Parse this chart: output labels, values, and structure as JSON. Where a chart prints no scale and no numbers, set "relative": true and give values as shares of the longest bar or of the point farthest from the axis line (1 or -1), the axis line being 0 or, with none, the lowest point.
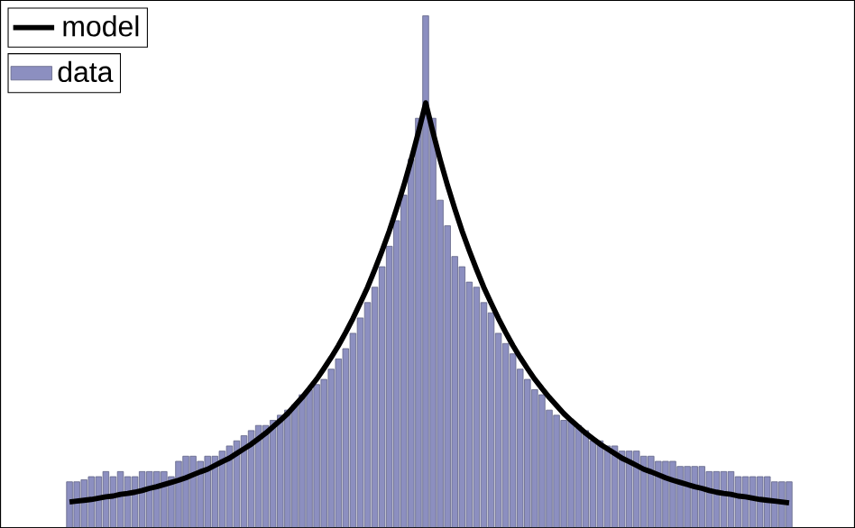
{
  "chart_data": [
    {
      "type": "line",
      "relative": true,
      "tick_labels": false,
      "legend": "top left",
      "categories": [
        null,
        null,
        null,
        null,
        null,
        null,
        null,
        null,
        null,
        null,
        null,
        null,
        null,
        null,
        null,
        null,
        null,
        null,
        null,
        null,
        null,
        null,
        null,
        null,
        null,
        null,
        null,
        null,
        null,
        null,
        null,
        null,
        null,
        null,
        null,
        null,
        null,
        null,
        null,
        null,
        null,
        null,
        null,
        null,
        null,
        null,
        null,
        null,
        null,
        null,
        null,
        null,
        null,
        null,
        null,
        null,
        null,
        null,
        null,
        null,
        null,
        null,
        null,
        null,
        null,
        null,
        null,
        null,
        null,
        null,
        null,
        null,
        null,
        null,
        null,
        null,
        null,
        null,
        null,
        null,
        null,
        null,
        null,
        null,
        null,
        null,
        null,
        null,
        null,
        null,
        null,
        null,
        null,
        null,
        null,
        null,
        null,
        null,
        null,
        null
      ],
      "series": [
        {
          "name": "model",
          "color": "#000000",
          "values": [
            0.061,
            0.063,
            0.065,
            0.067,
            0.07,
            0.073,
            0.075,
            0.079,
            0.081,
            0.084,
            0.088,
            0.093,
            0.097,
            0.102,
            0.107,
            0.112,
            0.118,
            0.125,
            0.132,
            0.138,
            0.147,
            0.156,
            0.164,
            0.175,
            0.186,
            0.197,
            0.21,
            0.223,
            0.238,
            0.253,
            0.269,
            0.288,
            0.307,
            0.328,
            0.35,
            0.375,
            0.401,
            0.429,
            0.46,
            0.493,
            0.529,
            0.566,
            0.608,
            0.652,
            0.699,
            0.751,
            0.806,
            0.866,
            0.931,
            1.0,
            0.931,
            0.866,
            0.806,
            0.751,
            0.699,
            0.652,
            0.608,
            0.566,
            0.529,
            0.493,
            0.46,
            0.429,
            0.401,
            0.375,
            0.35,
            0.328,
            0.307,
            0.288,
            0.269,
            0.253,
            0.238,
            0.223,
            0.21,
            0.197,
            0.186,
            0.175,
            0.164,
            0.156,
            0.147,
            0.138,
            0.132,
            0.125,
            0.118,
            0.112,
            0.107,
            0.102,
            0.097,
            0.093,
            0.088,
            0.084,
            0.081,
            0.079,
            0.075,
            0.073,
            0.07,
            0.067,
            0.065,
            0.063,
            0.061,
            0.059
          ]
        }
      ]
    },
    {
      "type": "bar",
      "relative": true,
      "tick_labels": false,
      "legend": "top left",
      "categories": [
        null,
        null,
        null,
        null,
        null,
        null,
        null,
        null,
        null,
        null,
        null,
        null,
        null,
        null,
        null,
        null,
        null,
        null,
        null,
        null,
        null,
        null,
        null,
        null,
        null,
        null,
        null,
        null,
        null,
        null,
        null,
        null,
        null,
        null,
        null,
        null,
        null,
        null,
        null,
        null,
        null,
        null,
        null,
        null,
        null,
        null,
        null,
        null,
        null,
        null,
        null,
        null,
        null,
        null,
        null,
        null,
        null,
        null,
        null,
        null,
        null,
        null,
        null,
        null,
        null,
        null,
        null,
        null,
        null,
        null,
        null,
        null,
        null,
        null,
        null,
        null,
        null,
        null,
        null,
        null,
        null,
        null,
        null,
        null,
        null,
        null,
        null,
        null,
        null,
        null,
        null,
        null,
        null,
        null,
        null,
        null,
        null,
        null,
        null,
        null
      ],
      "series": [
        {
          "name": "data",
          "color": "#8c8fc0",
          "values": [
            0.09,
            0.09,
            0.094,
            0.1,
            0.1,
            0.11,
            0.1,
            0.11,
            0.1,
            0.1,
            0.11,
            0.11,
            0.11,
            0.11,
            0.1,
            0.13,
            0.14,
            0.14,
            0.13,
            0.14,
            0.14,
            0.15,
            0.16,
            0.17,
            0.18,
            0.19,
            0.2,
            0.2,
            0.21,
            0.22,
            0.23,
            0.24,
            0.26,
            0.27,
            0.28,
            0.29,
            0.31,
            0.33,
            0.35,
            0.38,
            0.41,
            0.44,
            0.47,
            0.51,
            0.55,
            0.6,
            0.65,
            0.72,
            0.8,
            1.0,
            0.8,
            0.64,
            0.59,
            0.53,
            0.51,
            0.48,
            0.47,
            0.44,
            0.42,
            0.38,
            0.36,
            0.34,
            0.31,
            0.29,
            0.27,
            0.26,
            0.23,
            0.22,
            0.21,
            0.21,
            0.2,
            0.19,
            0.17,
            0.17,
            0.16,
            0.16,
            0.15,
            0.15,
            0.15,
            0.14,
            0.14,
            0.13,
            0.13,
            0.13,
            0.12,
            0.12,
            0.12,
            0.12,
            0.11,
            0.11,
            0.11,
            0.11,
            0.1,
            0.1,
            0.1,
            0.1,
            0.1,
            0.09,
            0.09,
            0.09
          ]
        }
      ]
    }
  ]
}
